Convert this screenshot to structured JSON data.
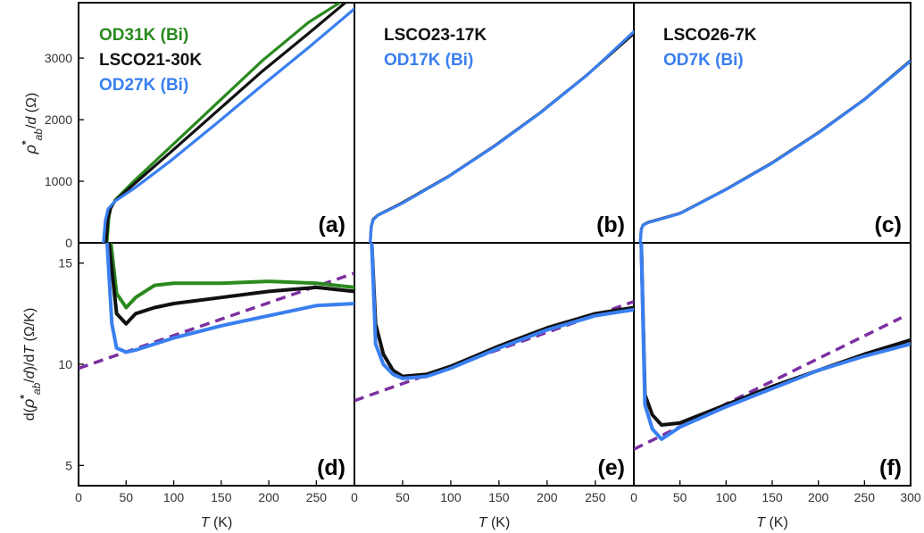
{
  "chart_data": [
    {
      "panel": "a",
      "type": "line",
      "panel_label": "(a)",
      "ylabel": "ρ*ab/d (Ω)",
      "xlim": [
        0,
        300
      ],
      "ylim": [
        0,
        3900
      ],
      "yticks": [
        0,
        1000,
        2000,
        3000
      ],
      "legend_position": "top-left",
      "series": [
        {
          "name": "OD31K (Bi)",
          "color": "#2a8a1e",
          "x": [
            31,
            33,
            35,
            40,
            60,
            100,
            150,
            200,
            250,
            284
          ],
          "y": [
            0,
            400,
            570,
            700,
            1000,
            1560,
            2260,
            2960,
            3580,
            3900
          ]
        },
        {
          "name": "LSCO21-30K",
          "color": "#111111",
          "x": [
            30,
            32,
            35,
            40,
            60,
            100,
            150,
            200,
            250,
            290
          ],
          "y": [
            0,
            380,
            560,
            690,
            950,
            1470,
            2130,
            2790,
            3400,
            3900
          ]
        },
        {
          "name": "OD27K (Bi)",
          "color": "#3a7ff0",
          "x": [
            27,
            29,
            32,
            40,
            60,
            100,
            150,
            200,
            250,
            300
          ],
          "y": [
            0,
            360,
            550,
            680,
            880,
            1330,
            1940,
            2560,
            3170,
            3800
          ]
        }
      ]
    },
    {
      "panel": "b",
      "type": "line",
      "panel_label": "(b)",
      "xlim": [
        0,
        300
      ],
      "ylim": [
        0,
        3900
      ],
      "legend_position": "top-left",
      "series": [
        {
          "name": "LSCO23-17K",
          "color": "#111111",
          "x": [
            17,
            18,
            20,
            25,
            50,
            100,
            150,
            200,
            250,
            300
          ],
          "y": [
            0,
            260,
            380,
            450,
            640,
            1070,
            1570,
            2120,
            2730,
            3400
          ]
        },
        {
          "name": "OD17K (Bi)",
          "color": "#3a7ff0",
          "x": [
            17,
            18,
            20,
            25,
            50,
            100,
            150,
            200,
            250,
            300
          ],
          "y": [
            0,
            250,
            370,
            445,
            630,
            1065,
            1565,
            2115,
            2725,
            3430
          ]
        }
      ]
    },
    {
      "panel": "c",
      "type": "line",
      "panel_label": "(c)",
      "xlim": [
        0,
        300
      ],
      "ylim": [
        0,
        3900
      ],
      "legend_position": "top-left",
      "series": [
        {
          "name": "LSCO26-7K",
          "color": "#111111",
          "x": [
            7,
            8,
            10,
            15,
            50,
            100,
            150,
            200,
            250,
            300
          ],
          "y": [
            0,
            220,
            290,
            330,
            480,
            870,
            1300,
            1790,
            2330,
            2960
          ]
        },
        {
          "name": "OD7K (Bi)",
          "color": "#3a7ff0",
          "x": [
            7,
            8,
            10,
            15,
            50,
            100,
            150,
            200,
            250,
            300
          ],
          "y": [
            0,
            215,
            285,
            325,
            475,
            865,
            1295,
            1785,
            2325,
            2950
          ]
        }
      ]
    },
    {
      "panel": "d",
      "type": "line",
      "panel_label": "(d)",
      "xlabel": "T (K)",
      "ylabel": "d(ρ*ab/d)/dT (Ω/K)",
      "xlim": [
        0,
        290
      ],
      "ylim": [
        4,
        16
      ],
      "xticks": [
        0,
        50,
        100,
        150,
        200,
        250
      ],
      "yticks": [
        5,
        10,
        15
      ],
      "series": [
        {
          "name": "OD31K (Bi)",
          "color": "#2a8a1e",
          "x": [
            34,
            40,
            50,
            60,
            80,
            100,
            150,
            200,
            250,
            290
          ],
          "y": [
            16,
            13.5,
            12.8,
            13.3,
            13.9,
            14.0,
            14.0,
            14.1,
            14.0,
            13.8
          ]
        },
        {
          "name": "LSCO21-30K",
          "color": "#111111",
          "x": [
            32,
            40,
            50,
            60,
            80,
            100,
            150,
            200,
            250,
            290
          ],
          "y": [
            16,
            12.5,
            12.0,
            12.5,
            12.8,
            13.0,
            13.3,
            13.6,
            13.8,
            13.6
          ]
        },
        {
          "name": "OD27K (Bi)",
          "color": "#3a7ff0",
          "x": [
            30,
            35,
            40,
            50,
            60,
            80,
            100,
            150,
            200,
            250,
            290
          ],
          "y": [
            16,
            12.0,
            10.8,
            10.6,
            10.7,
            11.0,
            11.3,
            11.9,
            12.4,
            12.9,
            13.0
          ]
        }
      ],
      "fit_line": {
        "x": [
          0,
          290
        ],
        "y": [
          9.8,
          14.5
        ]
      }
    },
    {
      "panel": "e",
      "type": "line",
      "panel_label": "(e)",
      "xlabel": "T (K)",
      "xlim": [
        0,
        290
      ],
      "ylim": [
        4,
        16
      ],
      "xticks": [
        0,
        50,
        100,
        150,
        200,
        250
      ],
      "series": [
        {
          "name": "LSCO23-17K",
          "color": "#111111",
          "x": [
            18,
            22,
            30,
            40,
            50,
            75,
            100,
            150,
            200,
            250,
            290
          ],
          "y": [
            16,
            12.0,
            10.5,
            9.7,
            9.4,
            9.5,
            9.9,
            10.9,
            11.8,
            12.5,
            12.8
          ]
        },
        {
          "name": "OD17K (Bi)",
          "color": "#3a7ff0",
          "x": [
            18,
            22,
            30,
            40,
            50,
            75,
            100,
            150,
            200,
            250,
            290
          ],
          "y": [
            16,
            11.0,
            10.0,
            9.5,
            9.3,
            9.4,
            9.8,
            10.8,
            11.7,
            12.4,
            12.7
          ]
        }
      ],
      "fit_line": {
        "x": [
          0,
          290
        ],
        "y": [
          8.2,
          13.1
        ]
      }
    },
    {
      "panel": "f",
      "type": "line",
      "panel_label": "(f)",
      "xlabel": "T (K)",
      "xlim": [
        0,
        300
      ],
      "ylim": [
        4,
        16
      ],
      "xticks": [
        0,
        50,
        100,
        150,
        200,
        250,
        300
      ],
      "series": [
        {
          "name": "LSCO26-7K",
          "color": "#111111",
          "x": [
            8,
            12,
            20,
            30,
            50,
            100,
            150,
            200,
            250,
            300
          ],
          "y": [
            16,
            8.5,
            7.5,
            7.0,
            7.1,
            8.0,
            8.9,
            9.7,
            10.5,
            11.2
          ]
        },
        {
          "name": "OD7K (Bi)",
          "color": "#3a7ff0",
          "x": [
            8,
            12,
            20,
            30,
            50,
            100,
            150,
            200,
            250,
            300
          ],
          "y": [
            16,
            8.0,
            6.8,
            6.3,
            6.9,
            7.9,
            8.8,
            9.7,
            10.4,
            11.0
          ]
        }
      ],
      "fit_line": {
        "x": [
          0,
          290
        ],
        "y": [
          5.8,
          12.3
        ]
      }
    }
  ]
}
